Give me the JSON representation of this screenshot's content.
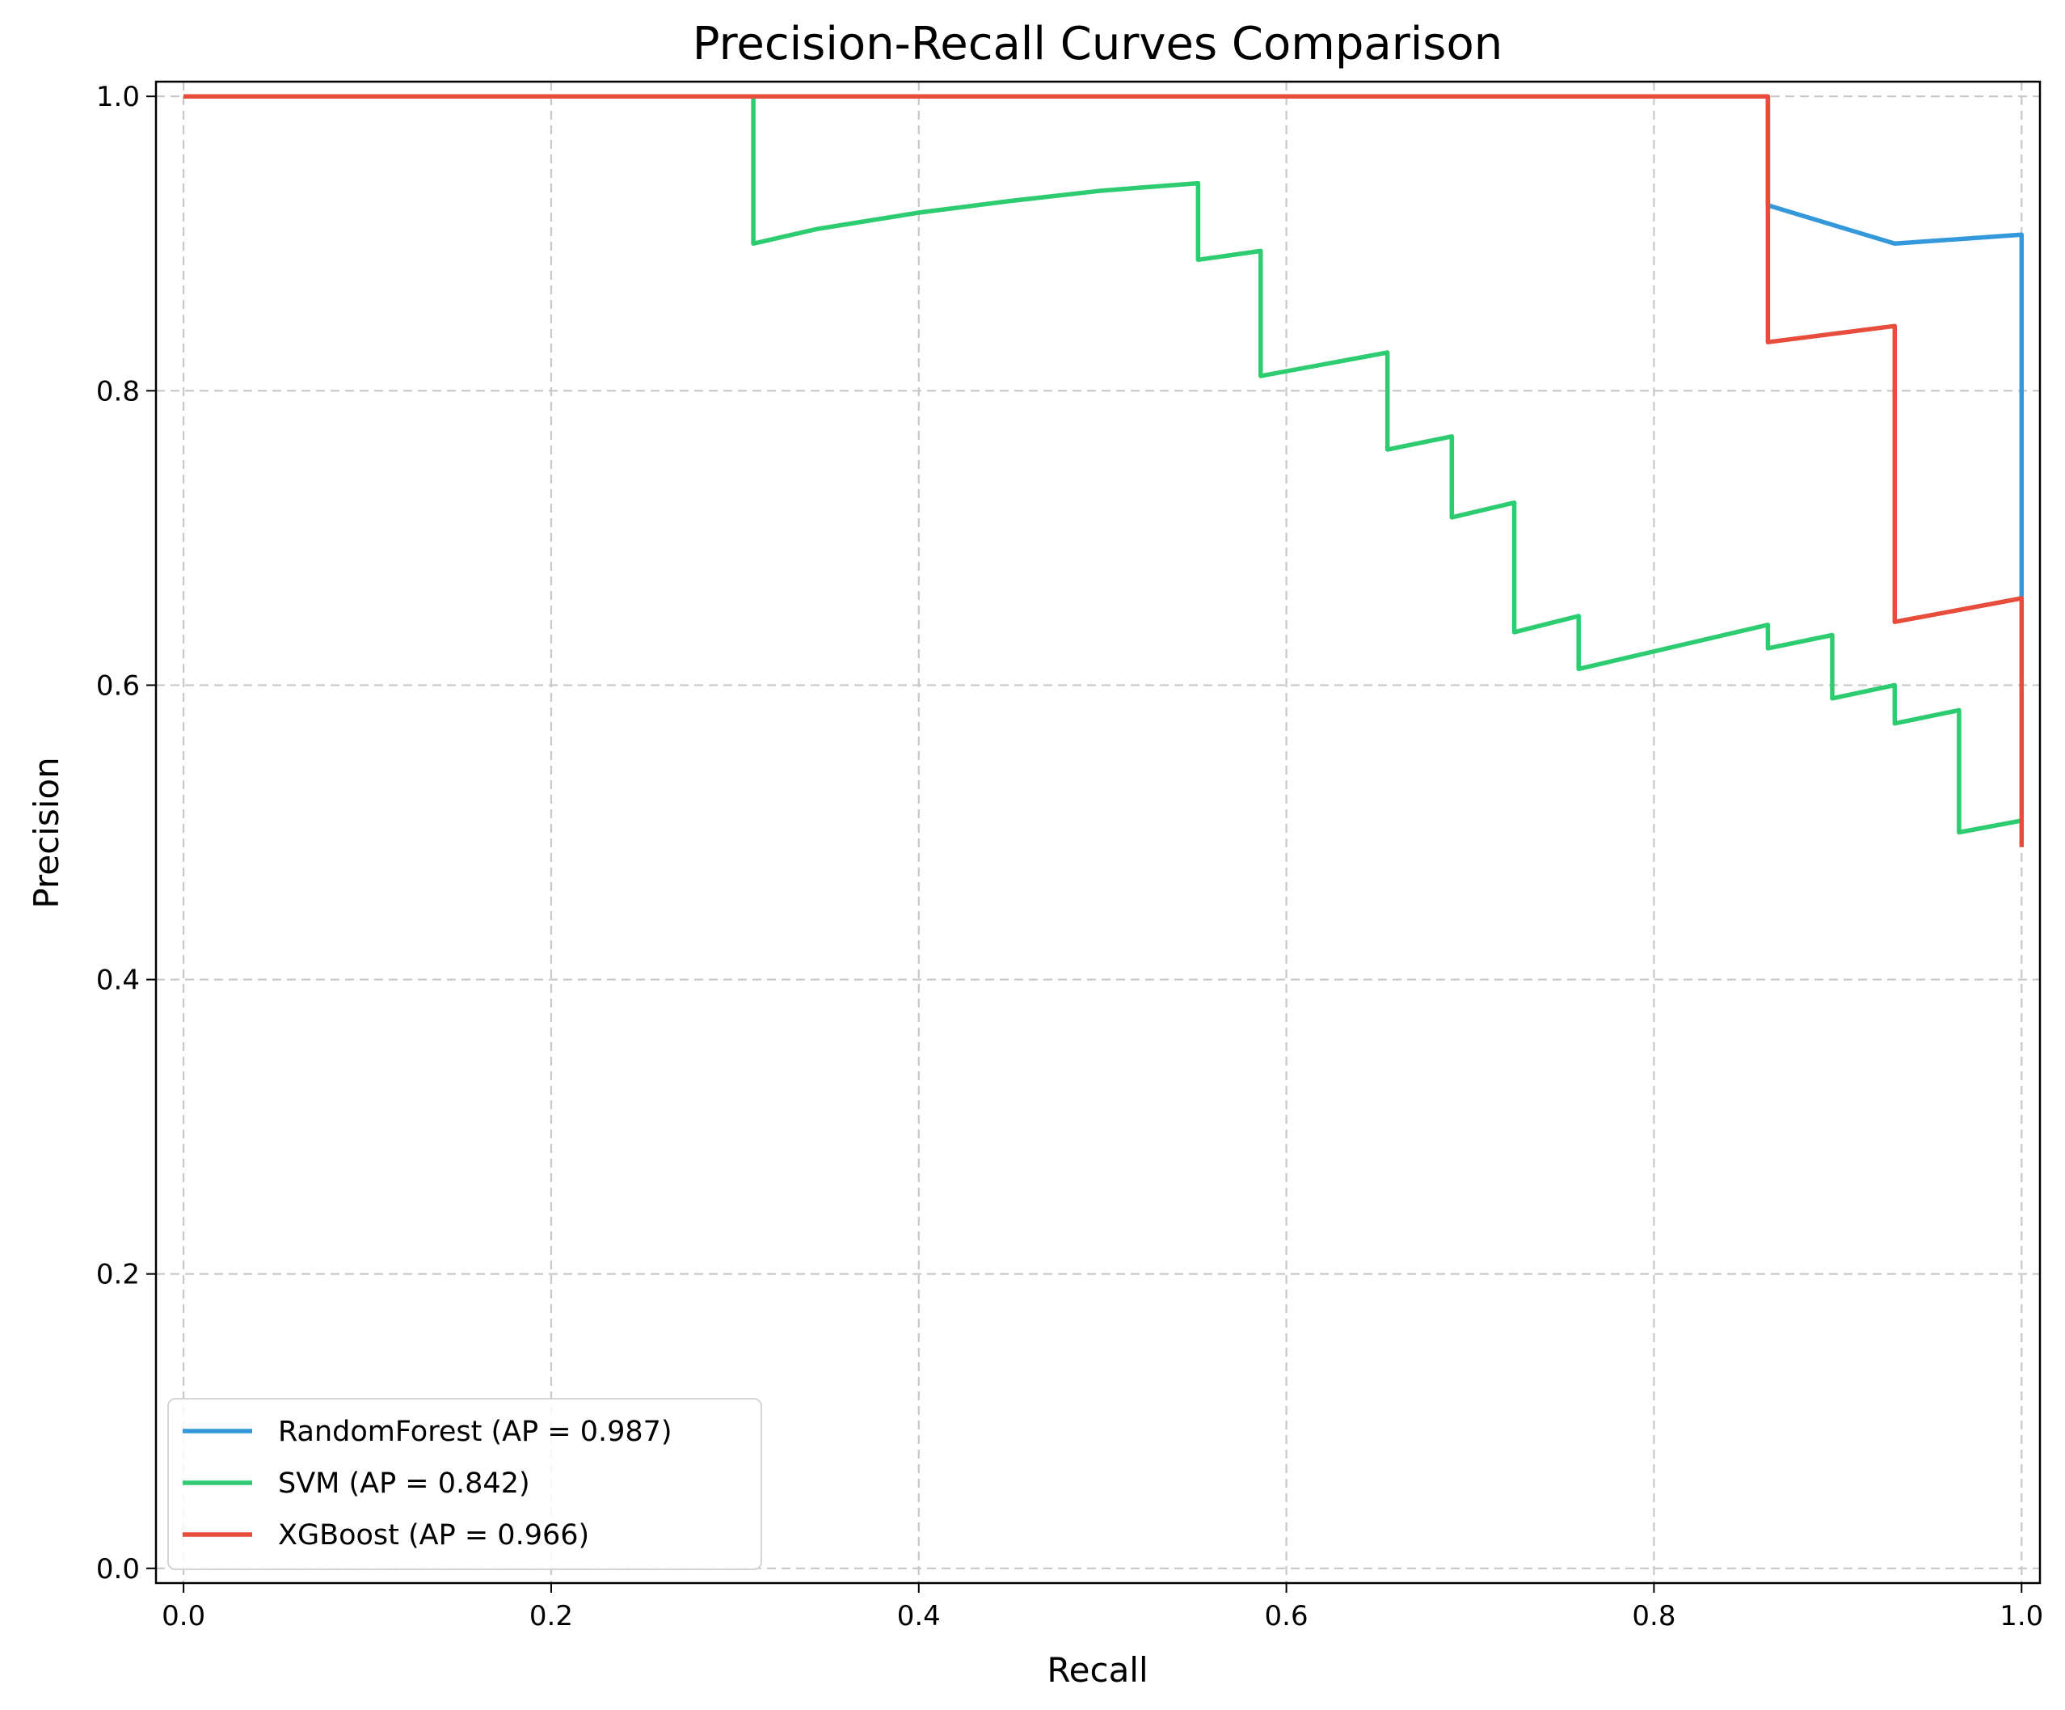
{
  "chart_data": {
    "type": "line",
    "title": "Precision-Recall Curves Comparison",
    "xlabel": "Recall",
    "ylabel": "Precision",
    "xlim": [
      -0.015,
      1.01
    ],
    "ylim": [
      -0.01,
      1.01
    ],
    "xticks": [
      "0.0",
      "0.2",
      "0.4",
      "0.6",
      "0.8",
      "1.0"
    ],
    "yticks": [
      "0.0",
      "0.2",
      "0.4",
      "0.6",
      "0.8",
      "1.0"
    ],
    "grid": true,
    "legend_position": "lower-left",
    "series": [
      {
        "name": "RandomForest (AP = 0.987)",
        "color": "#3498db",
        "x": [
          0.0,
          0.862,
          0.862,
          0.931,
          1.0,
          1.0
        ],
        "y": [
          1.0,
          1.0,
          0.926,
          0.9,
          0.906,
          0.66
        ]
      },
      {
        "name": "SVM (AP = 0.842)",
        "color": "#2ecc71",
        "x": [
          0.0,
          0.31,
          0.31,
          0.345,
          0.4,
          0.45,
          0.5,
          0.552,
          0.552,
          0.586,
          0.586,
          0.655,
          0.655,
          0.69,
          0.69,
          0.724,
          0.724,
          0.759,
          0.759,
          0.862,
          0.862,
          0.897,
          0.897,
          0.931,
          0.931,
          0.966,
          0.966,
          1.0
        ],
        "y": [
          1.0,
          1.0,
          0.9,
          0.91,
          0.921,
          0.929,
          0.936,
          0.941,
          0.889,
          0.895,
          0.81,
          0.826,
          0.76,
          0.769,
          0.714,
          0.724,
          0.636,
          0.647,
          0.611,
          0.641,
          0.625,
          0.634,
          0.591,
          0.6,
          0.574,
          0.583,
          0.5,
          0.508
        ]
      },
      {
        "name": "XGBoost (AP = 0.966)",
        "color": "#e74c3c",
        "x": [
          0.0,
          0.862,
          0.862,
          0.931,
          0.931,
          1.0,
          1.0
        ],
        "y": [
          1.0,
          1.0,
          0.833,
          0.844,
          0.643,
          0.659,
          0.49
        ]
      }
    ]
  }
}
